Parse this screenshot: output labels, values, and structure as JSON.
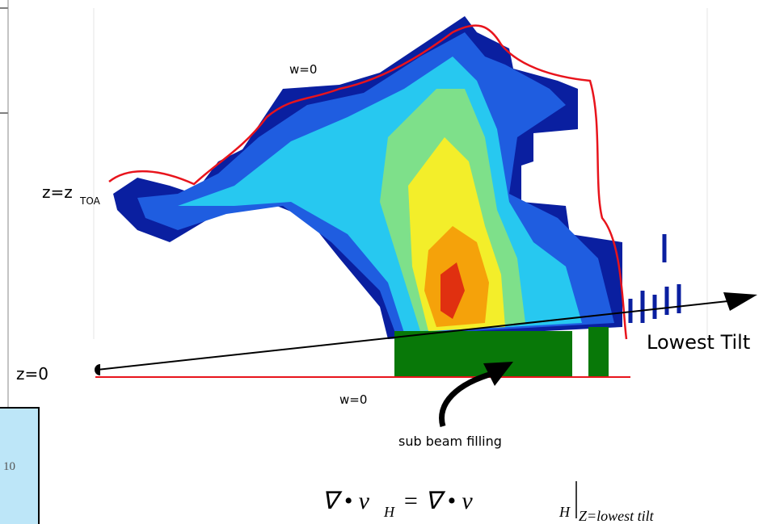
{
  "labels": {
    "w_top": "w=0",
    "z_toa": "z=z",
    "z_toa_sub": "TOA",
    "z_zero": "z=0",
    "w_bottom": "w=0",
    "lowest_tilt": "Lowest Tilt",
    "sub_beam": "sub beam filling",
    "axis_tick": "10"
  },
  "equation": {
    "lhs": "∇ • v",
    "lhs_sub": "H",
    "rhs": "= ∇ • v",
    "rhs_sub": "H",
    "eval_sub": "Z=lowest tilt"
  }
}
